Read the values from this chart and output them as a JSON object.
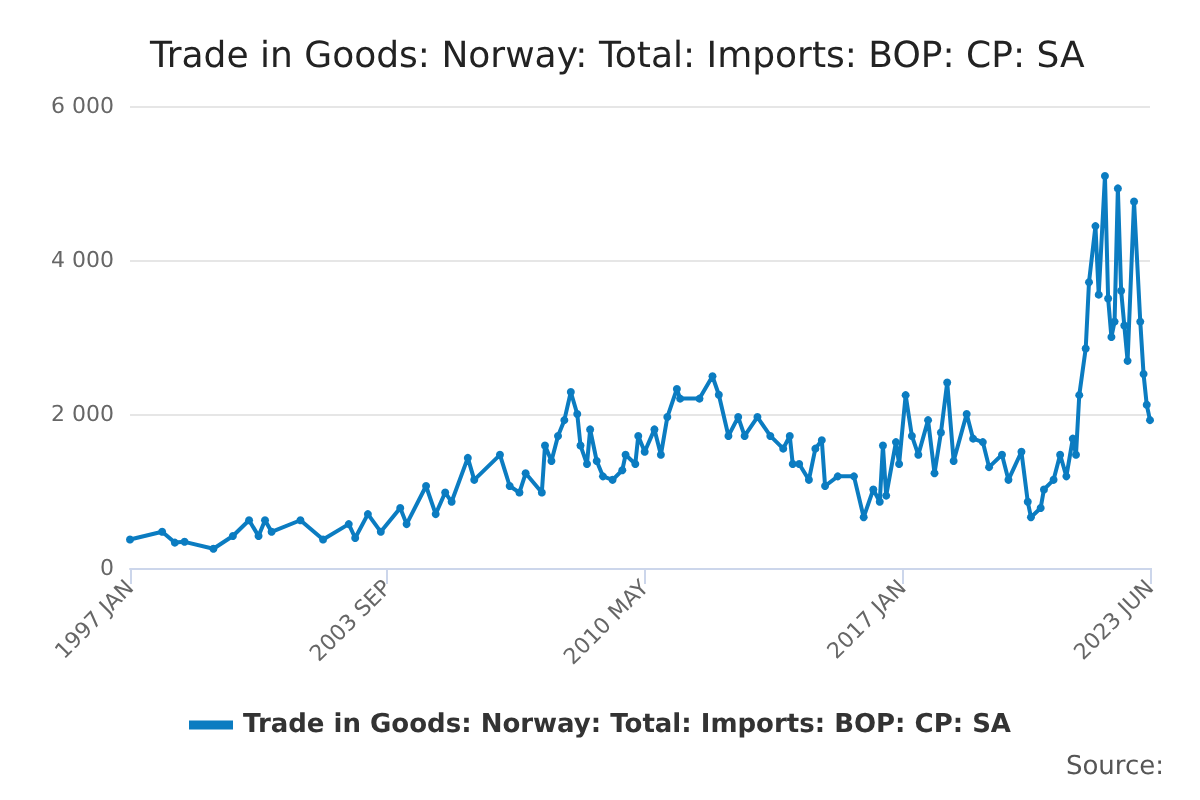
{
  "chart_data": {
    "type": "line",
    "title": "Trade in Goods: Norway: Total: Imports: BOP: CP: SA",
    "x": [
      "1997-01",
      "1997-11",
      "1998-03",
      "1998-06",
      "1999-03",
      "1999-09",
      "2000-02",
      "2000-05",
      "2000-07",
      "2000-09",
      "2001-06",
      "2002-01",
      "2002-09",
      "2002-11",
      "2003-03",
      "2003-07",
      "2004-01",
      "2004-03",
      "2004-09",
      "2004-12",
      "2005-03",
      "2005-05",
      "2005-10",
      "2005-12",
      "2006-08",
      "2006-11",
      "2007-02",
      "2007-04",
      "2007-09",
      "2007-10",
      "2007-12",
      "2008-02",
      "2008-04",
      "2008-06",
      "2008-08",
      "2008-09",
      "2008-11",
      "2008-12",
      "2009-02",
      "2009-04",
      "2009-07",
      "2009-10",
      "2009-11",
      "2010-02",
      "2010-03",
      "2010-05",
      "2010-08",
      "2010-10",
      "2010-12",
      "2011-03",
      "2011-04",
      "2011-10",
      "2012-02",
      "2012-04",
      "2012-07",
      "2012-10",
      "2012-12",
      "2013-04",
      "2013-08",
      "2013-12",
      "2014-02",
      "2014-03",
      "2014-05",
      "2014-08",
      "2014-10",
      "2014-12",
      "2015-01",
      "2015-05",
      "2015-10",
      "2016-01",
      "2016-04",
      "2016-06",
      "2016-07",
      "2016-08",
      "2016-11",
      "2016-12",
      "2017-02",
      "2017-04",
      "2017-06",
      "2017-09",
      "2017-11",
      "2018-01",
      "2018-03",
      "2018-05",
      "2018-09",
      "2018-11",
      "2019-02",
      "2019-04",
      "2019-08",
      "2019-10",
      "2020-02",
      "2020-04",
      "2020-05",
      "2020-08",
      "2020-09",
      "2020-12",
      "2021-02",
      "2021-04",
      "2021-06",
      "2021-07",
      "2021-08",
      "2021-10",
      "2021-11",
      "2022-01",
      "2022-02",
      "2022-04",
      "2022-05",
      "2022-06",
      "2022-07",
      "2022-08",
      "2022-09",
      "2022-10",
      "2022-11",
      "2023-01",
      "2023-03",
      "2023-04",
      "2023-05",
      "2023-06"
    ],
    "series": [
      {
        "name": "Trade in Goods: Norway: Total: Imports: BOP: CP: SA",
        "color": "#0b7cc1",
        "values": [
          370,
          470,
          330,
          340,
          250,
          415,
          620,
          415,
          620,
          470,
          620,
          370,
          570,
          390,
          700,
          470,
          780,
          570,
          1065,
          700,
          980,
          860,
          1430,
          1145,
          1470,
          1065,
          980,
          1230,
          980,
          1590,
          1390,
          1715,
          1920,
          2285,
          2000,
          1590,
          1350,
          1800,
          1390,
          1190,
          1145,
          1270,
          1470,
          1350,
          1715,
          1510,
          1800,
          1470,
          1960,
          2325,
          2200,
          2200,
          2490,
          2250,
          1715,
          1960,
          1715,
          1960,
          1715,
          1550,
          1715,
          1350,
          1350,
          1145,
          1550,
          1660,
          1065,
          1190,
          1190,
          660,
          1020,
          860,
          1590,
          940,
          1635,
          1350,
          2245,
          1715,
          1470,
          1920,
          1230,
          1760,
          2410,
          1390,
          2000,
          1680,
          1635,
          1310,
          1470,
          1145,
          1510,
          860,
          660,
          780,
          1020,
          1145,
          1470,
          1190,
          1680,
          1470,
          2245,
          2850,
          3710,
          4440,
          3550,
          5090,
          3500,
          3000,
          3200,
          4930,
          3600,
          3150,
          2690,
          4760,
          3200,
          2520,
          2120,
          1920
        ]
      }
    ],
    "xlim": [
      "1997-01",
      "2023-06"
    ],
    "xticks": [
      {
        "value": "1997-01",
        "label": "1997 JAN"
      },
      {
        "value": "2003-09",
        "label": "2003 SEP"
      },
      {
        "value": "2010-05",
        "label": "2010 MAY"
      },
      {
        "value": "2017-01",
        "label": "2017 JAN"
      },
      {
        "value": "2023-06",
        "label": "2023 JUN"
      }
    ],
    "ylim": [
      0,
      6000
    ],
    "yticks": [
      0,
      {
        "value": 2000,
        "label": "2 000"
      },
      {
        "value": 4000,
        "label": "4 000"
      },
      {
        "value": 6000,
        "label": "6 000"
      }
    ],
    "grid": "y",
    "legend": "bottom",
    "marker": "circle",
    "line_style": "solid",
    "annotations": [
      "Source:"
    ]
  }
}
